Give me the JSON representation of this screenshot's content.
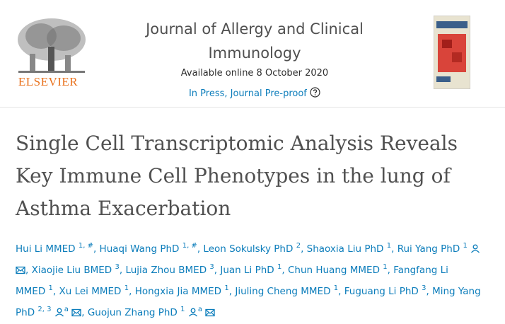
{
  "header": {
    "publisher": "ELSEVIER",
    "journal": "Journal of Allergy and Clinical Immunology",
    "available": "Available online 8 October 2020",
    "status": "In Press, Journal Pre-proof"
  },
  "article": {
    "title": "Single Cell Transcriptomic Analysis Reveals Key Immune Cell Phenotypes in the lung of Asthma Exacerbation",
    "author_separator": ",",
    "authors": [
      {
        "name": "Hui Li MMED",
        "sup": "1, #"
      },
      {
        "name": "Huaqi Wang PhD",
        "sup": "1, #"
      },
      {
        "name": "Leon Sokulsky PhD",
        "sup": "2"
      },
      {
        "name": "Shaoxia Liu PhD",
        "sup": "1"
      },
      {
        "name": "Rui Yang PhD",
        "sup": "1",
        "person": true,
        "mail": true
      },
      {
        "name": "Xiaojie Liu BMED",
        "sup": "3"
      },
      {
        "name": "Lujia Zhou BMED",
        "sup": "3"
      },
      {
        "name": "Juan Li PhD",
        "sup": "1"
      },
      {
        "name": "Chun Huang MMED",
        "sup": "1"
      },
      {
        "name": "Fangfang Li MMED",
        "sup": "1"
      },
      {
        "name": "Xu Lei MMED",
        "sup": "1"
      },
      {
        "name": "Hongxia Jia MMED",
        "sup": "1"
      },
      {
        "name": "Jiuling Cheng MMED",
        "sup": "1"
      },
      {
        "name": "Fuguang Li PhD",
        "sup": "3"
      },
      {
        "name": "Ming Yang PhD",
        "sup": "2, 3",
        "person": true,
        "note": "a",
        "mail": true
      },
      {
        "name": "Guojun Zhang PhD",
        "sup": "1",
        "person": true,
        "note": "a",
        "mail": true
      }
    ]
  }
}
